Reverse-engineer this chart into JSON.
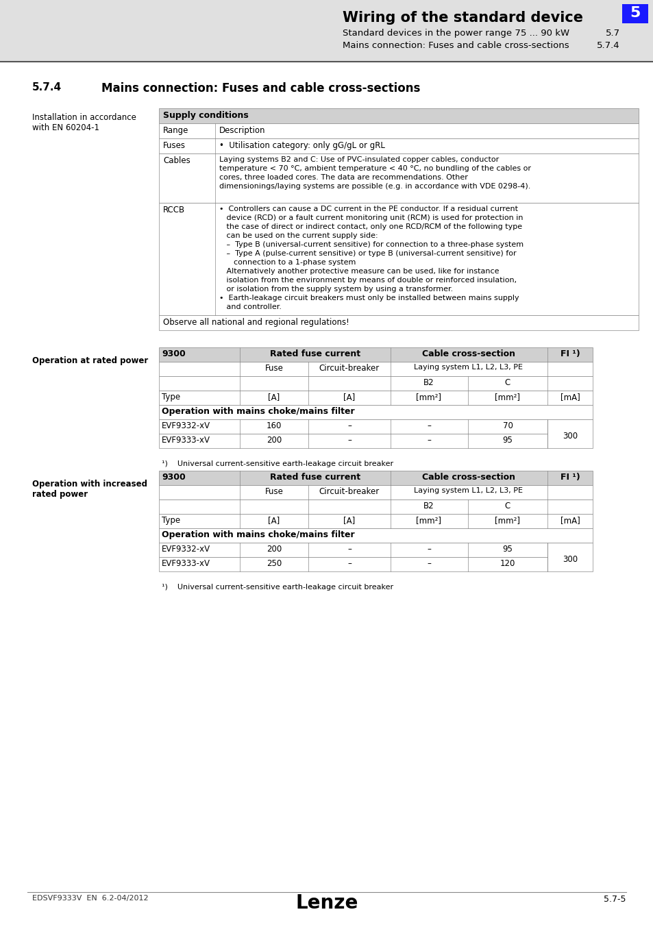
{
  "header_title": "Wiring of the standard device",
  "header_sub1": "Standard devices in the power range 75 ... 90 kW",
  "header_sub1_num": "5.7",
  "header_sub2": "Mains connection: Fuses and cable cross-sections",
  "header_sub2_num": "5.7.4",
  "header_num": "5",
  "section_num": "5.7.4",
  "section_title": "Mains connection: Fuses and cable cross-sections",
  "left_label1": "Installation in accordance\nwith EN 60204-1",
  "supply_conditions_title": "Supply conditions",
  "supply_col1": "Range",
  "supply_col2": "Description",
  "observe_note": "Observe all national and regional regulations!",
  "left_label2": "Operation at rated power",
  "left_label3": "Operation with increased\nrated power",
  "table_choke_title": "Operation with mains choke/mains filter",
  "table1_rows": [
    {
      "type": "EVF9332-xV",
      "fuse": "160",
      "circuit": "–",
      "b2": "–",
      "c": "70"
    },
    {
      "type": "EVF9333-xV",
      "fuse": "200",
      "circuit": "–",
      "b2": "–",
      "c": "95"
    }
  ],
  "table2_rows": [
    {
      "type": "EVF9332-xV",
      "fuse": "200",
      "circuit": "–",
      "b2": "–",
      "c": "95"
    },
    {
      "type": "EVF9333-xV",
      "fuse": "250",
      "circuit": "–",
      "b2": "–",
      "c": "120"
    }
  ],
  "fi_value": "300",
  "footnote_text": "Universal current-sensitive earth-leakage circuit breaker",
  "footer_left": "EDSVF9333V  EN  6.2-04/2012",
  "footer_center": "Lenze",
  "footer_right": "5.7-5",
  "bg_color": "#e0e0e0",
  "white": "#ffffff",
  "table_header_bg": "#d0d0d0",
  "blue_box_color": "#1a1aff",
  "cables_text_line1": "Laying systems B2 and C: Use of PVC-insulated copper cables, conductor",
  "cables_text_line2": "temperature < 70 °C, ambient temperature < 40 °C, no bundling of the cables or",
  "cables_text_line3": "cores, three loaded cores. The data are recommendations. Other",
  "cables_text_line4": "dimensionings/laying systems are possible (e.g. in accordance with VDE 0298-4).",
  "rccb_lines": [
    "•  Controllers can cause a DC current in the PE conductor. If a residual current",
    "   device (RCD) or a fault current monitoring unit (RCM) is used for protection in",
    "   the case of direct or indirect contact, only one RCD/RCM of the following type",
    "   can be used on the current supply side:",
    "   –  Type B (universal-current sensitive) for connection to a three-phase system",
    "   –  Type A (pulse-current sensitive) or type B (universal-current sensitive) for",
    "      connection to a 1-phase system",
    "   Alternatively another protective measure can be used, like for instance",
    "   isolation from the environment by means of double or reinforced insulation,",
    "   or isolation from the supply system by using a transformer.",
    "•  Earth-leakage circuit breakers must only be installed between mains supply",
    "   and controller."
  ]
}
